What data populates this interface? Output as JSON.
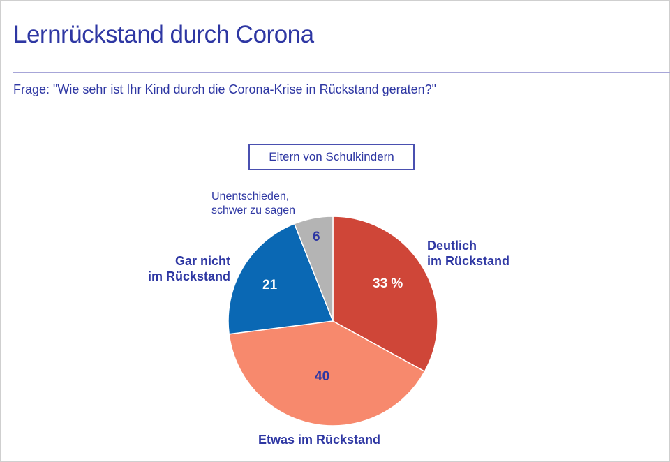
{
  "header": {
    "title": "Lernrückstand durch Corona",
    "question": "Frage: \"Wie sehr ist Ihr Kind durch die Corona-Krise in Rückstand geraten?\""
  },
  "chart_data": {
    "type": "pie",
    "group_label": "Eltern von Schulkindern",
    "unit": "%",
    "slices": [
      {
        "label_line1": "Deutlich",
        "label_line2": "im Rückstand",
        "value": 33,
        "value_text": "33 %",
        "color": "#cf4638"
      },
      {
        "label_line1": "Etwas im Rückstand",
        "label_line2": "",
        "value": 40,
        "value_text": "40",
        "color": "#f7896d"
      },
      {
        "label_line1": "Gar nicht",
        "label_line2": "im Rückstand",
        "value": 21,
        "value_text": "21",
        "color": "#0a68b4"
      },
      {
        "label_line1": "Unentschieden,",
        "label_line2": "schwer zu sagen",
        "value": 6,
        "value_text": "6",
        "color": "#b4b4b4"
      }
    ]
  }
}
